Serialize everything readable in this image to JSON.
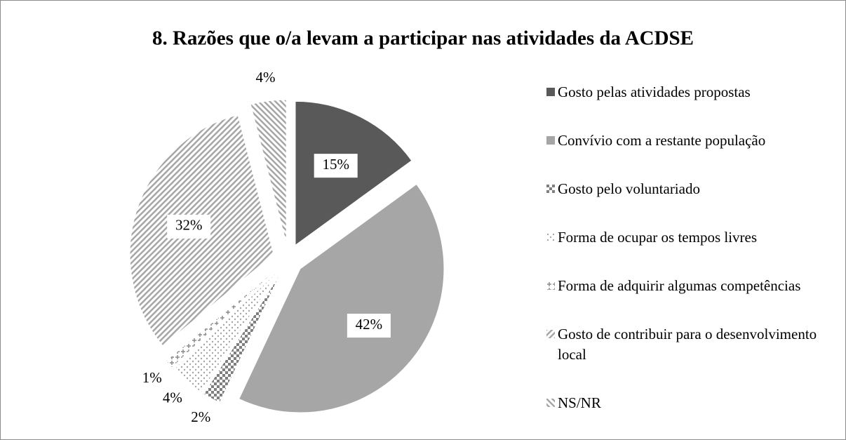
{
  "chart_data": {
    "type": "pie",
    "title": "8. Razões que o/a levam a participar nas atividades da ACDSE",
    "categories": [
      "Gosto pelas atividades propostas",
      "Convívio com a restante população",
      "Gosto pelo voluntariado",
      "Forma de ocupar os tempos livres",
      "Forma de adquirir algumas competências",
      "Gosto de contribuir para o desenvolvimento local",
      "NS/NR"
    ],
    "values": [
      15,
      42,
      2,
      4,
      1,
      32,
      4
    ],
    "value_labels": [
      "15%",
      "42%",
      "2%",
      "4%",
      "1%",
      "32%",
      "4%"
    ],
    "colors": [
      "#595959",
      "#a6a6a6",
      "#7f7f7f",
      "#a6a6a6",
      "#8c8c8c",
      "#a6a6a6",
      "#a6a6a6"
    ],
    "patterns": [
      "solid",
      "solid",
      "crosshatch",
      "dots",
      "cross",
      "diagonal",
      "backslash"
    ],
    "legend": "right"
  }
}
